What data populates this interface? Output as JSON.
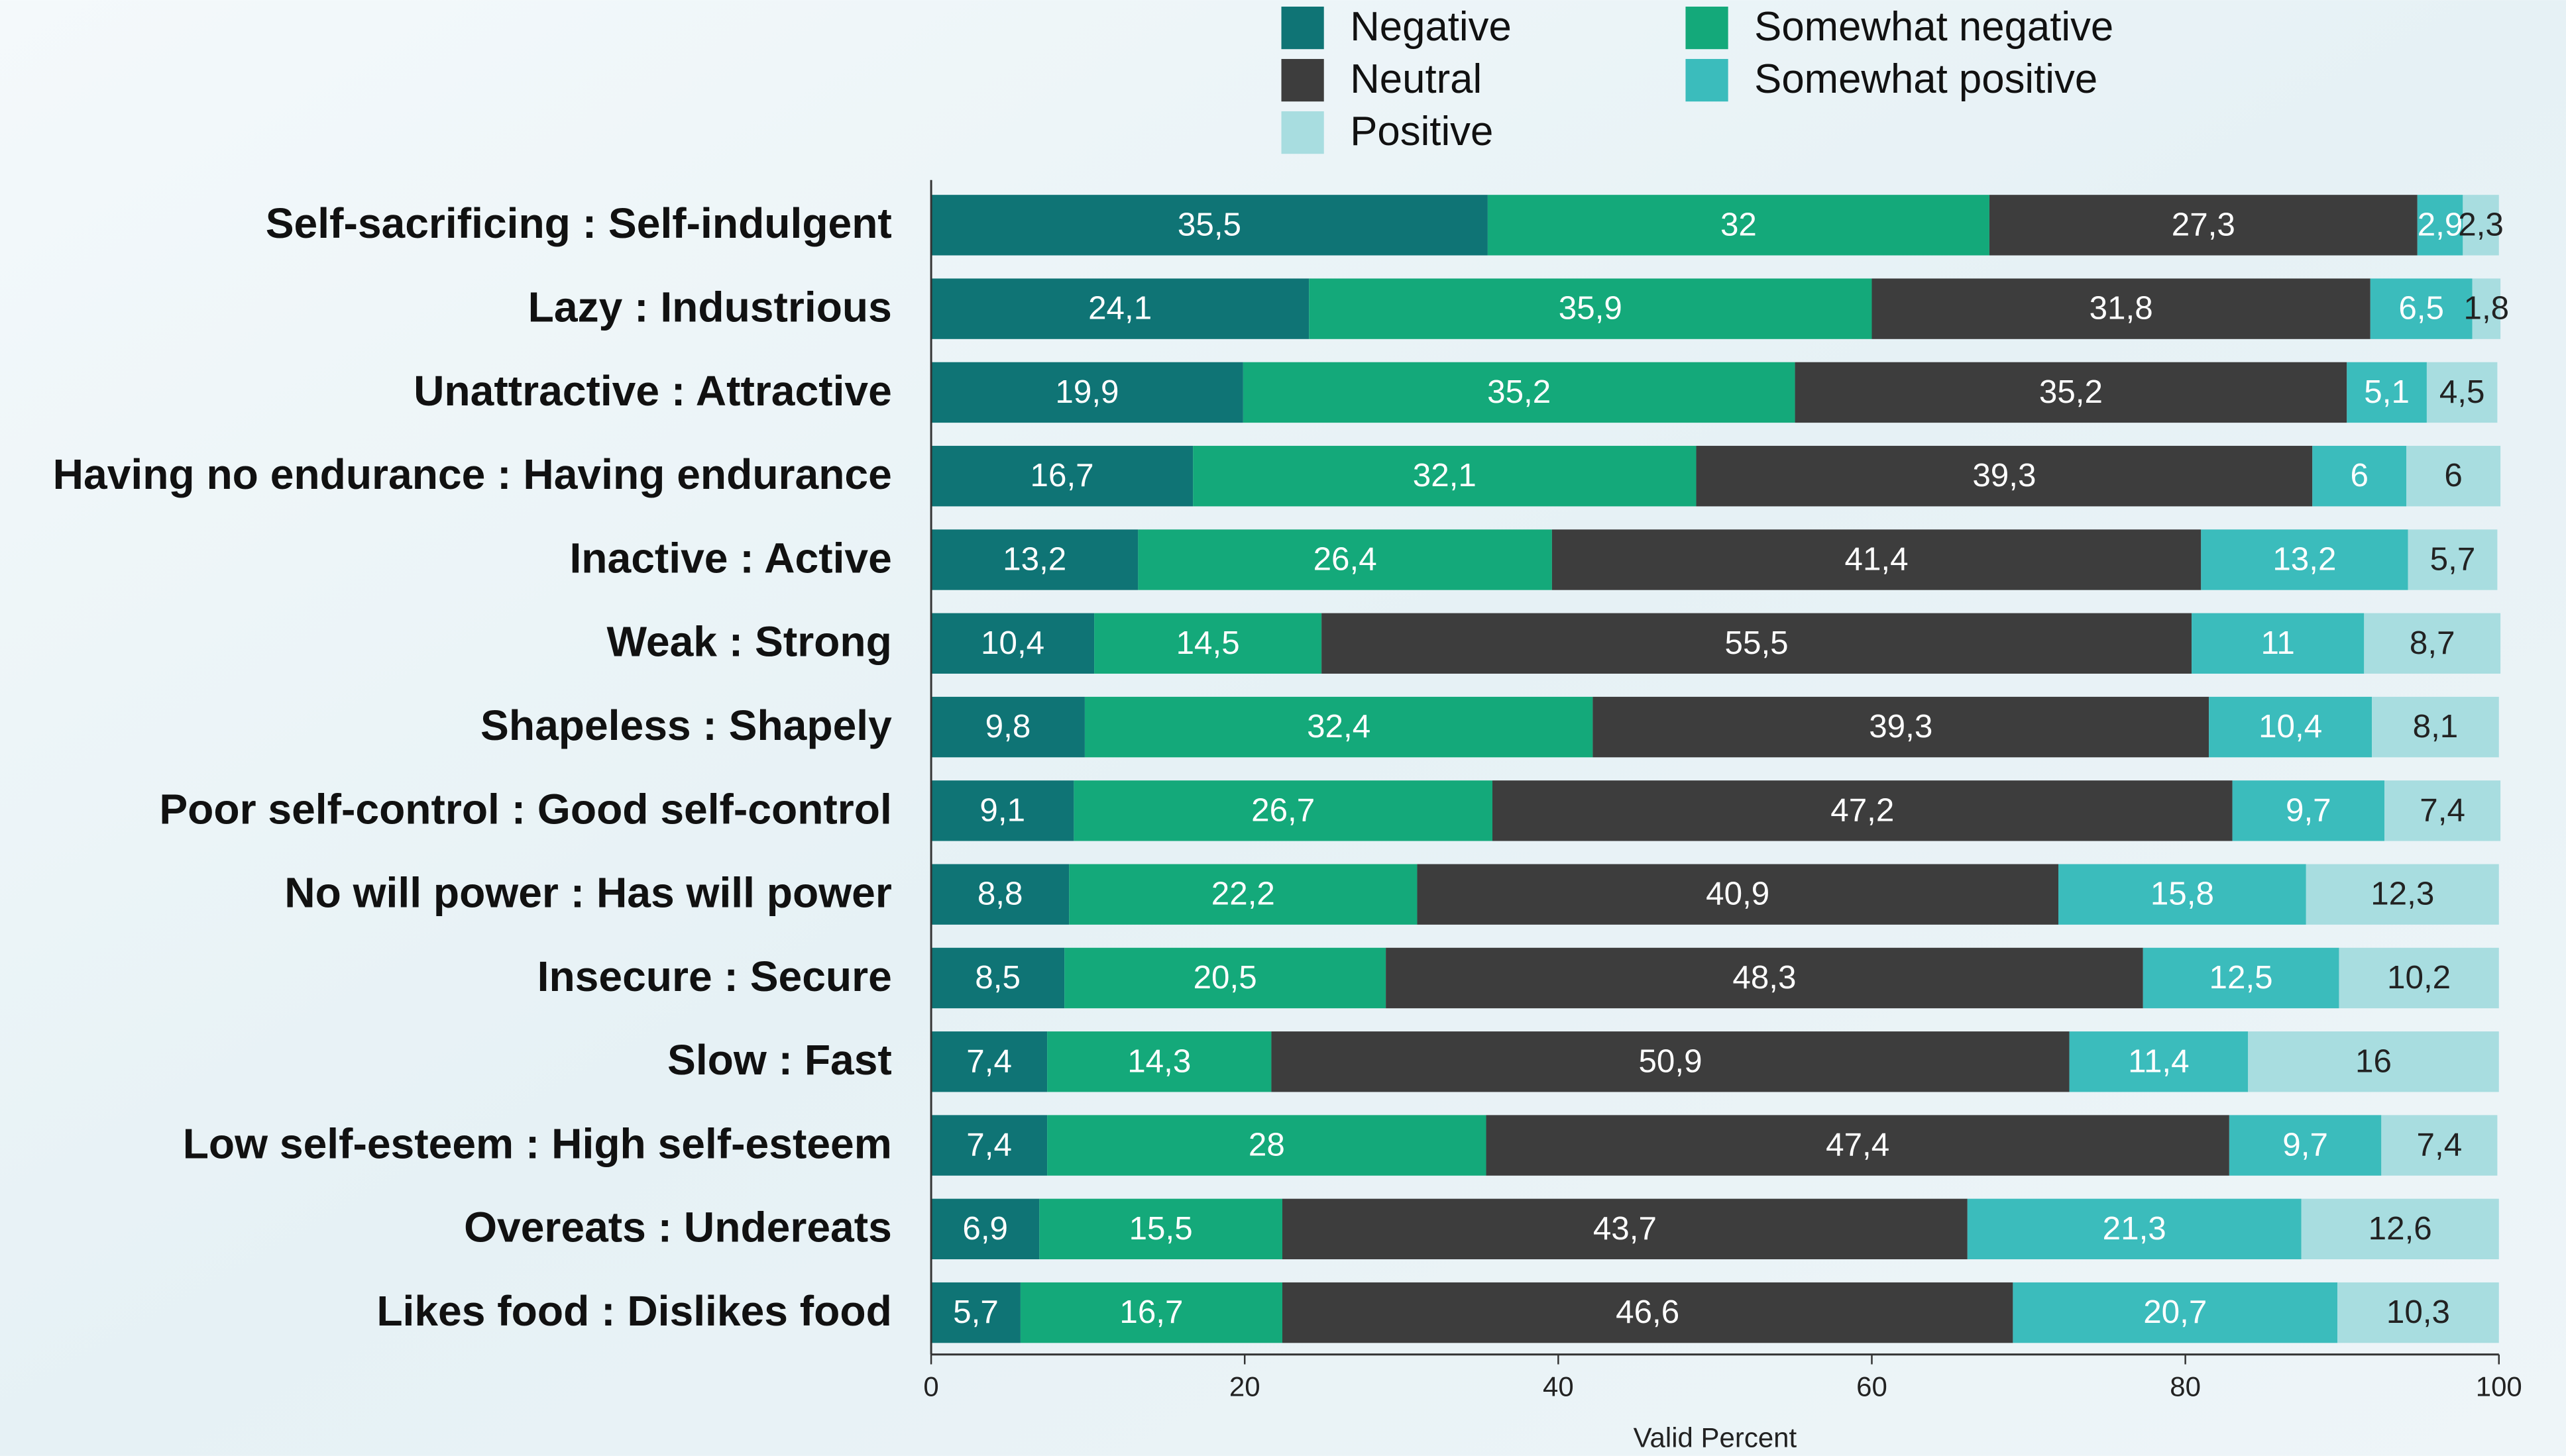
{
  "chart_data": {
    "type": "stacked-barh",
    "x_label": "Valid Percent",
    "categories": [
      "Self-sacrificing : Self-indulgent",
      "Lazy : Industrious",
      "Unattractive : Attractive",
      "Having no endurance : Having endurance",
      "Inactive : Active",
      "Weak : Strong",
      "Shapeless : Shapely",
      "Poor self-control : Good self-control",
      "No will power : Has will power",
      "Insecure : Secure",
      "Slow : Fast",
      "Low self-esteem : High self-esteem",
      "Overeats : Undereats",
      "Likes food : Dislikes food"
    ],
    "series": [
      {
        "name": "Negative",
        "color": "#0f7475",
        "values": [
          35.5,
          24.1,
          19.9,
          16.7,
          13.2,
          10.4,
          9.8,
          9.1,
          8.8,
          8.5,
          7.4,
          7.4,
          6.9,
          5.7
        ],
        "value_labels": [
          "35,5",
          "24,1",
          "19,9",
          "16,7",
          "13,2",
          "10,4",
          "9,8",
          "9,1",
          "8,8",
          "8,5",
          "7,4",
          "7,4",
          "6,9",
          "5,7"
        ]
      },
      {
        "name": "Somewhat negative",
        "color": "#14a97a",
        "values": [
          32,
          35.9,
          35.2,
          32.1,
          26.4,
          14.5,
          32.4,
          26.7,
          22.2,
          20.5,
          14.3,
          28,
          15.5,
          16.7
        ],
        "value_labels": [
          "32",
          "35,9",
          "35,2",
          "32,1",
          "26,4",
          "14,5",
          "32,4",
          "26,7",
          "22,2",
          "20,5",
          "14,3",
          "28",
          "15,5",
          "16,7"
        ]
      },
      {
        "name": "Neutral",
        "color": "#3d3d3d",
        "values": [
          27.3,
          31.8,
          35.2,
          39.3,
          41.4,
          55.5,
          39.3,
          47.2,
          40.9,
          48.3,
          50.9,
          47.4,
          43.7,
          46.6
        ],
        "value_labels": [
          "27,3",
          "31,8",
          "35,2",
          "39,3",
          "41,4",
          "55,5",
          "39,3",
          "47,2",
          "40,9",
          "48,3",
          "50,9",
          "47,4",
          "43,7",
          "46,6"
        ]
      },
      {
        "name": "Somewhat positive",
        "color": "#3bbcbc",
        "values": [
          2.9,
          6.5,
          5.1,
          6,
          13.2,
          11,
          10.4,
          9.7,
          15.8,
          12.5,
          11.4,
          9.7,
          21.3,
          20.7
        ],
        "value_labels": [
          "2,9",
          "6,5",
          "5,1",
          "6",
          "13,2",
          "11",
          "10,4",
          "9,7",
          "15,8",
          "12,5",
          "11,4",
          "9,7",
          "21,3",
          "20,7"
        ]
      },
      {
        "name": "Positive",
        "color": "#a8dde0",
        "values": [
          2.3,
          1.8,
          4.5,
          6,
          5.7,
          8.7,
          8.1,
          7.4,
          12.3,
          10.2,
          16,
          7.4,
          12.6,
          10.3
        ],
        "value_labels": [
          "2,3",
          "1,8",
          "4,5",
          "6",
          "5,7",
          "8,7",
          "8,1",
          "7,4",
          "12,3",
          "10,2",
          "16",
          "7,4",
          "12,6",
          "10,3"
        ]
      }
    ],
    "xlim": [
      0,
      100
    ],
    "xticks": [
      0,
      20,
      40,
      60,
      80,
      100
    ]
  }
}
